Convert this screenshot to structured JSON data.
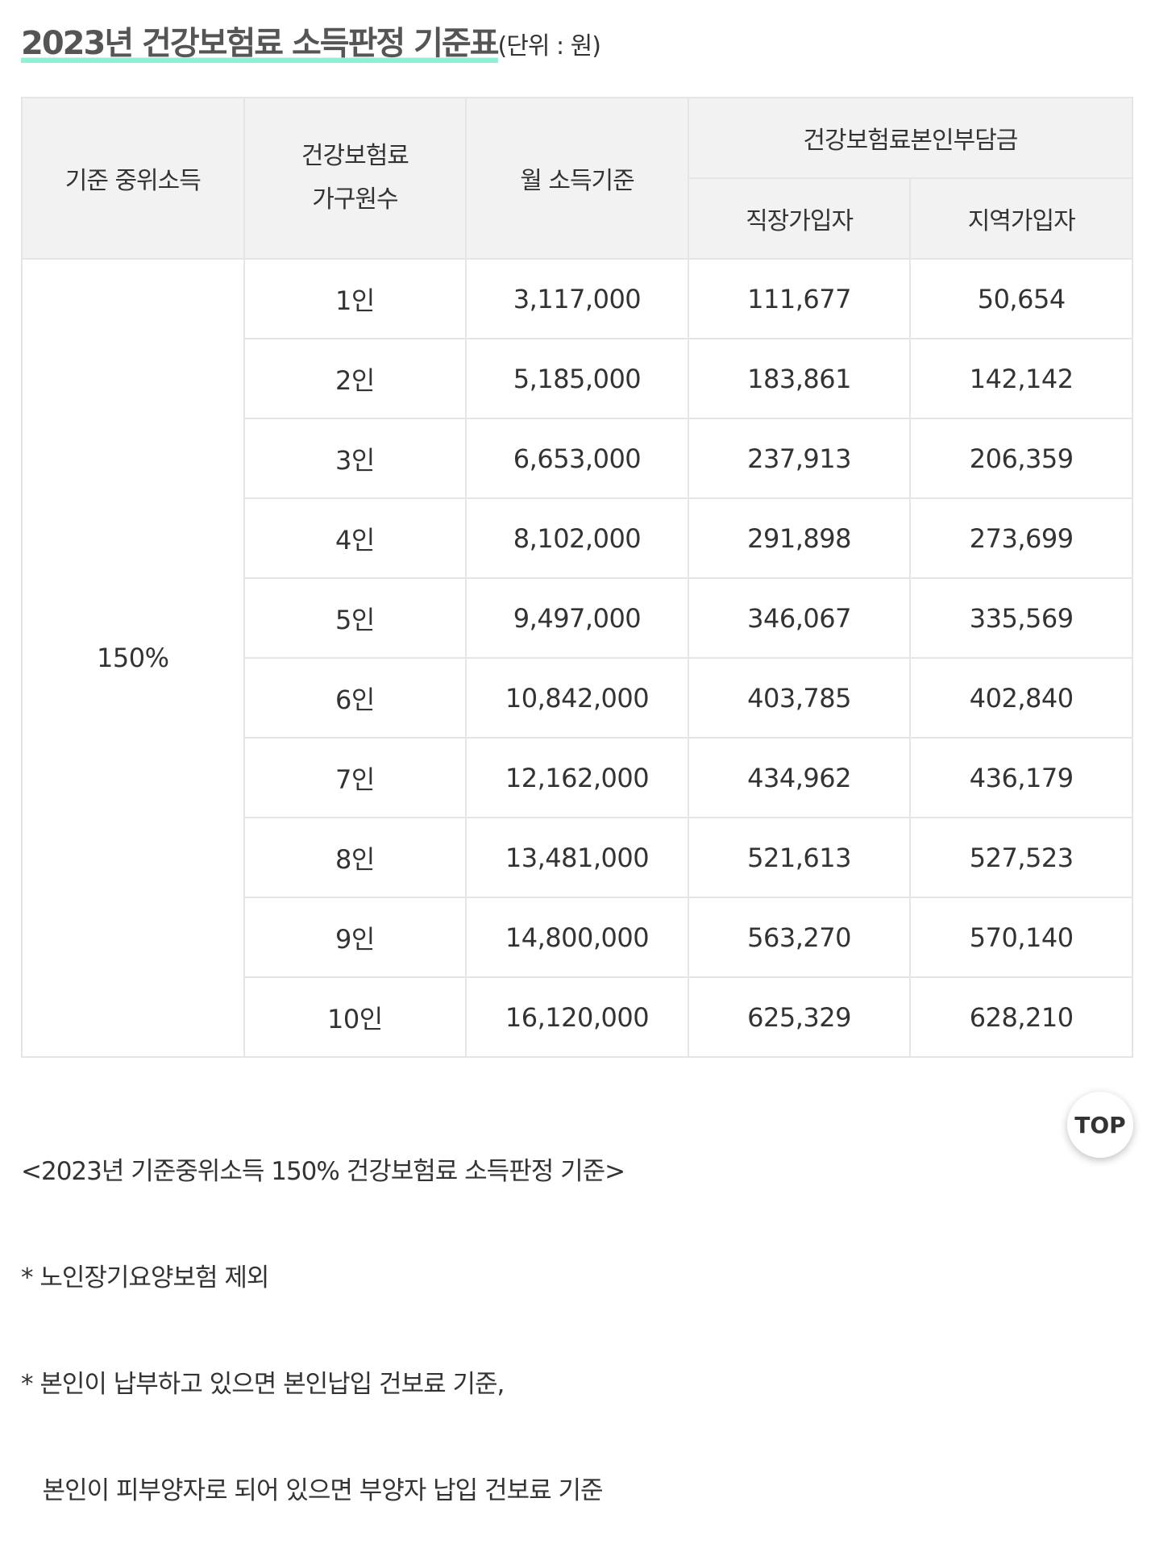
{
  "title": "2023년 건강보험료 소득판정 기준표",
  "unit": "(단위 : 원)",
  "table": {
    "headers": {
      "median": "기준 중위소득",
      "household_line1": "건강보험료",
      "household_line2": "가구원수",
      "monthly": "월 소득기준",
      "burden_group": "건강보험료본인부담금",
      "employee": "직장가입자",
      "regional": "지역가입자"
    },
    "median_value": "150%",
    "rows": [
      {
        "household": "1인",
        "monthly": "3,117,000",
        "employee": "111,677",
        "regional": "50,654"
      },
      {
        "household": "2인",
        "monthly": "5,185,000",
        "employee": "183,861",
        "regional": "142,142"
      },
      {
        "household": "3인",
        "monthly": "6,653,000",
        "employee": "237,913",
        "regional": "206,359"
      },
      {
        "household": "4인",
        "monthly": "8,102,000",
        "employee": "291,898",
        "regional": "273,699"
      },
      {
        "household": "5인",
        "monthly": "9,497,000",
        "employee": "346,067",
        "regional": "335,569"
      },
      {
        "household": "6인",
        "monthly": "10,842,000",
        "employee": "403,785",
        "regional": "402,840"
      },
      {
        "household": "7인",
        "monthly": "12,162,000",
        "employee": "434,962",
        "regional": "436,179"
      },
      {
        "household": "8인",
        "monthly": "13,481,000",
        "employee": "521,613",
        "regional": "527,523"
      },
      {
        "household": "9인",
        "monthly": "14,800,000",
        "employee": "563,270",
        "regional": "570,140"
      },
      {
        "household": "10인",
        "monthly": "16,120,000",
        "employee": "625,329",
        "regional": "628,210"
      }
    ]
  },
  "notes": [
    "<2023년 기준중위소득 150% 건강보험료 소득판정 기준>",
    "* 노인장기요양보험 제외",
    "* 본인이 납부하고 있으면 본인납입 건보료 기준,",
    "   본인이 피부양자로 되어 있으면 부양자 납입 건보료 기준"
  ],
  "top_button": "TOP",
  "colors": {
    "title_highlight": "#8ff0d8",
    "header_bg": "#f2f2f2",
    "border": "#e5e5e5"
  }
}
